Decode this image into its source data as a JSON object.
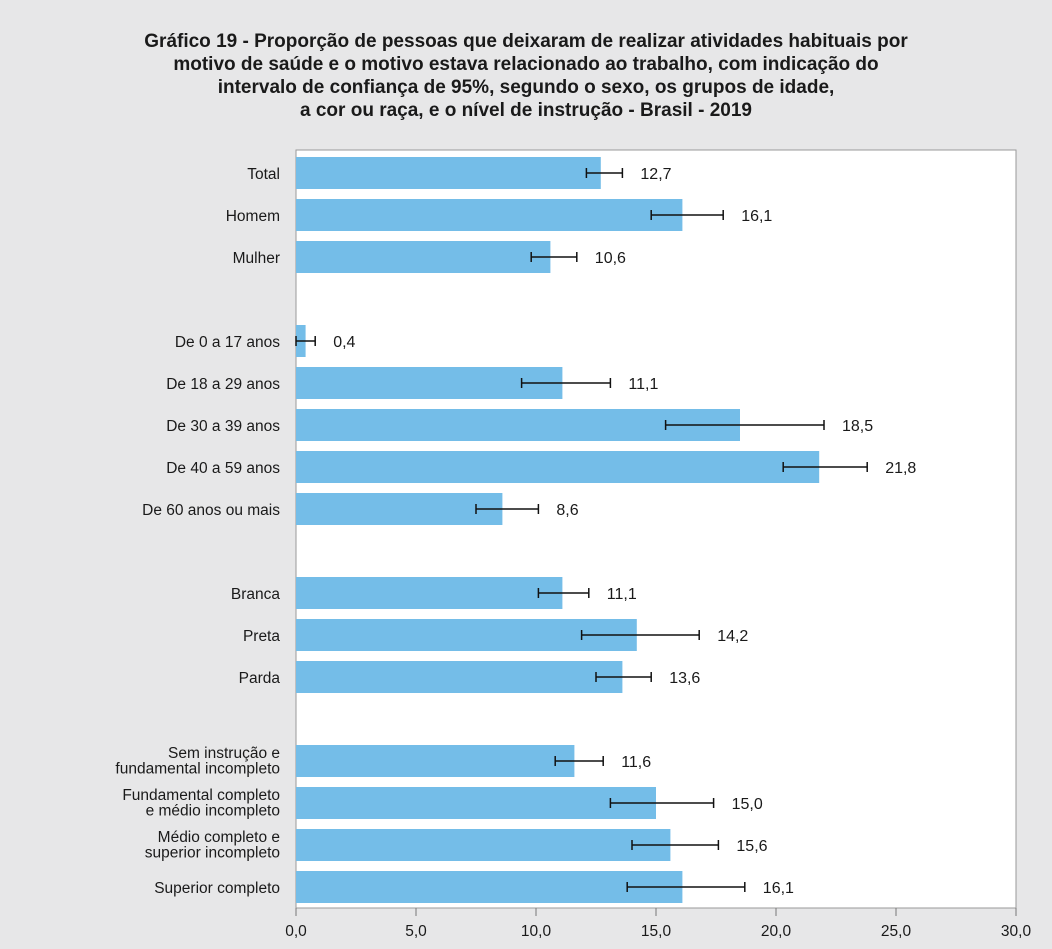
{
  "chart_data": {
    "type": "bar",
    "orientation": "horizontal",
    "title_lines": [
      "Gráfico 19 - Proporção de pessoas que deixaram de realizar atividades habituais por",
      "motivo de saúde e o motivo estava relacionado ao trabalho, com indicação do",
      "intervalo de confiança de 95%, segundo o sexo, os grupos de idade,",
      "a cor ou raça, e o nível de instrução - Brasil - 2019"
    ],
    "xlim": [
      0,
      30
    ],
    "x_ticks": [
      "0,0",
      "5,0",
      "10,0",
      "15,0",
      "20,0",
      "25,0",
      "30,0"
    ],
    "x_tick_values": [
      0,
      5,
      10,
      15,
      20,
      25,
      30
    ],
    "bar_color": "#74bde8",
    "background_color": "#e7e7e8",
    "grid": false,
    "groups": [
      {
        "categories": [
          {
            "label_lines": [
              "Total"
            ],
            "value": 12.7,
            "value_label": "12,7",
            "ci": [
              12.1,
              13.6
            ]
          },
          {
            "label_lines": [
              "Homem"
            ],
            "value": 16.1,
            "value_label": "16,1",
            "ci": [
              14.8,
              17.8
            ]
          },
          {
            "label_lines": [
              "Mulher"
            ],
            "value": 10.6,
            "value_label": "10,6",
            "ci": [
              9.8,
              11.7
            ]
          }
        ]
      },
      {
        "categories": [
          {
            "label_lines": [
              "De 0 a 17 anos"
            ],
            "value": 0.4,
            "value_label": "0,4",
            "ci": [
              0.0,
              0.8
            ]
          },
          {
            "label_lines": [
              "De 18 a 29 anos"
            ],
            "value": 11.1,
            "value_label": "11,1",
            "ci": [
              9.4,
              13.1
            ]
          },
          {
            "label_lines": [
              "De 30 a 39 anos"
            ],
            "value": 18.5,
            "value_label": "18,5",
            "ci": [
              15.4,
              22.0
            ]
          },
          {
            "label_lines": [
              "De 40 a 59 anos"
            ],
            "value": 21.8,
            "value_label": "21,8",
            "ci": [
              20.3,
              23.8
            ]
          },
          {
            "label_lines": [
              "De 60 anos ou mais"
            ],
            "value": 8.6,
            "value_label": "8,6",
            "ci": [
              7.5,
              10.1
            ]
          }
        ]
      },
      {
        "categories": [
          {
            "label_lines": [
              "Branca"
            ],
            "value": 11.1,
            "value_label": "11,1",
            "ci": [
              10.1,
              12.2
            ]
          },
          {
            "label_lines": [
              "Preta"
            ],
            "value": 14.2,
            "value_label": "14,2",
            "ci": [
              11.9,
              16.8
            ]
          },
          {
            "label_lines": [
              "Parda"
            ],
            "value": 13.6,
            "value_label": "13,6",
            "ci": [
              12.5,
              14.8
            ]
          }
        ]
      },
      {
        "categories": [
          {
            "label_lines": [
              "Sem instrução e",
              "fundamental incompleto"
            ],
            "value": 11.6,
            "value_label": "11,6",
            "ci": [
              10.8,
              12.8
            ]
          },
          {
            "label_lines": [
              "Fundamental completo",
              "e médio incompleto"
            ],
            "value": 15.0,
            "value_label": "15,0",
            "ci": [
              13.1,
              17.4
            ]
          },
          {
            "label_lines": [
              "Médio completo e",
              "superior incompleto"
            ],
            "value": 15.6,
            "value_label": "15,6",
            "ci": [
              14.0,
              17.6
            ]
          },
          {
            "label_lines": [
              "Superior completo"
            ],
            "value": 16.1,
            "value_label": "16,1",
            "ci": [
              13.8,
              18.7
            ]
          }
        ]
      }
    ]
  }
}
